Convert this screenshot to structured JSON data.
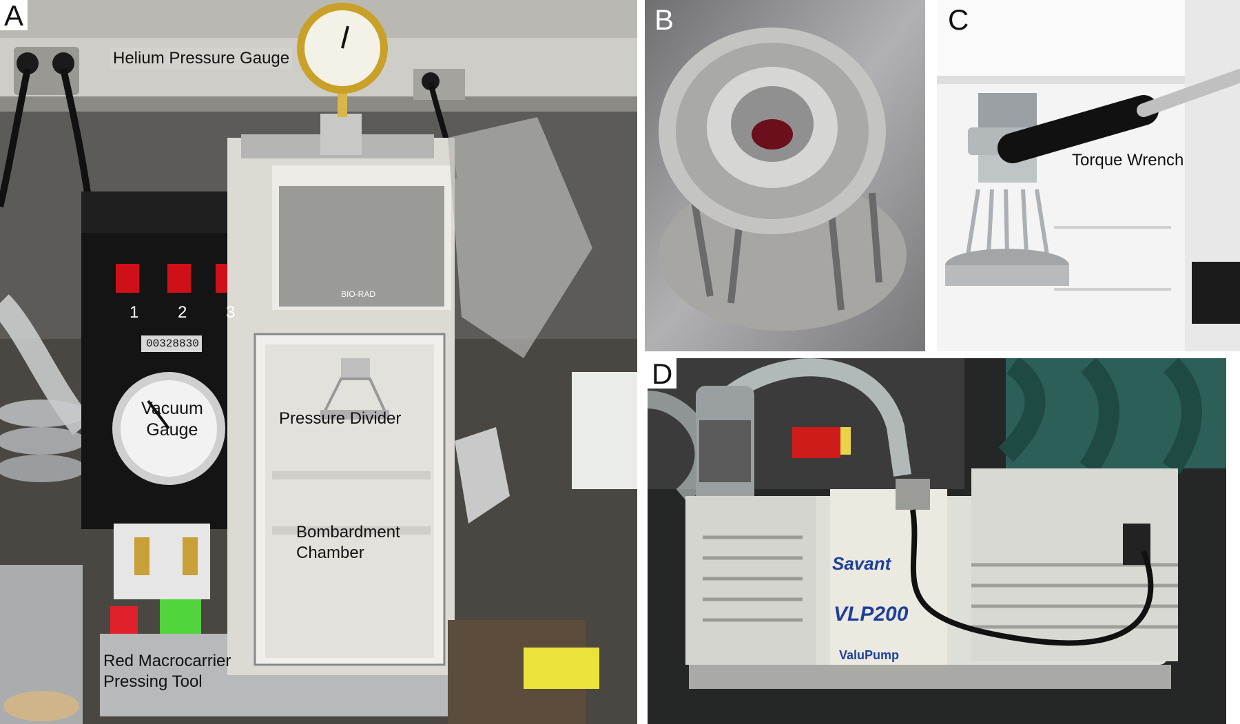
{
  "panels": {
    "a": {
      "label": "A",
      "annotations": {
        "helium_gauge": "Helium Pressure Gauge",
        "vacuum_gauge_1": "Vacuum",
        "vacuum_gauge_2": "Gauge",
        "pressure_divider": "Pressure Divider",
        "bombardment_1": "Bombardment",
        "bombardment_2": "Chamber",
        "red_tool_1": "Red Macrocarrier",
        "red_tool_2": "Pressing Tool"
      },
      "switch_numbers": [
        "1",
        "2",
        "3"
      ],
      "counter": "00328830",
      "device_brand": "BIO-RAD"
    },
    "b": {
      "label": "B"
    },
    "c": {
      "label": "C",
      "annotations": {
        "torque_wrench": "Torque Wrench"
      }
    },
    "d": {
      "label": "D",
      "pump_brand": "Savant",
      "pump_model": "VLP200",
      "pump_series": "ValuPump"
    }
  }
}
